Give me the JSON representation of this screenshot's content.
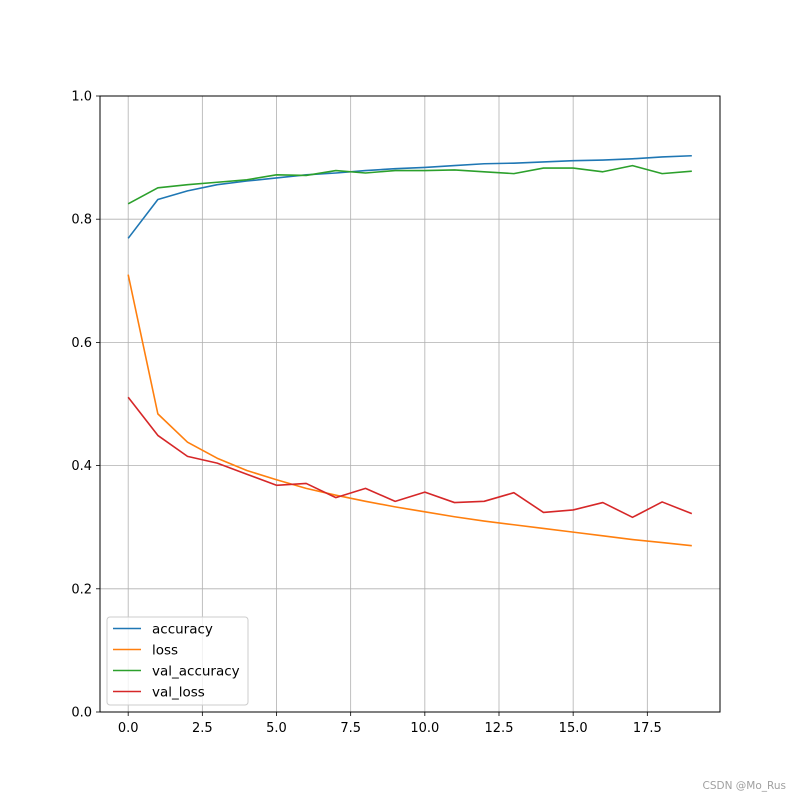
{
  "chart_data": {
    "type": "line",
    "title": "",
    "xlabel": "",
    "ylabel": "",
    "xlim": [
      -0.95,
      19.95
    ],
    "ylim": [
      0.0,
      1.0
    ],
    "x_ticks": [
      0.0,
      2.5,
      5.0,
      7.5,
      10.0,
      12.5,
      15.0,
      17.5
    ],
    "x_tick_labels": [
      "0.0",
      "2.5",
      "5.0",
      "7.5",
      "10.0",
      "12.5",
      "15.0",
      "17.5"
    ],
    "y_ticks": [
      0.0,
      0.2,
      0.4,
      0.6,
      0.8,
      1.0
    ],
    "y_tick_labels": [
      "0.0",
      "0.2",
      "0.4",
      "0.6",
      "0.8",
      "1.0"
    ],
    "grid": true,
    "legend_position": "lower-left",
    "x": [
      0,
      1,
      2,
      3,
      4,
      5,
      6,
      7,
      8,
      9,
      10,
      11,
      12,
      13,
      14,
      15,
      16,
      17,
      18,
      19
    ],
    "series": [
      {
        "name": "accuracy",
        "color": "#1f77b4",
        "values": [
          0.769,
          0.832,
          0.846,
          0.856,
          0.862,
          0.867,
          0.872,
          0.875,
          0.879,
          0.882,
          0.884,
          0.887,
          0.89,
          0.891,
          0.893,
          0.895,
          0.896,
          0.898,
          0.901,
          0.903
        ]
      },
      {
        "name": "loss",
        "color": "#ff7f0e",
        "values": [
          0.71,
          0.484,
          0.438,
          0.412,
          0.392,
          0.377,
          0.363,
          0.352,
          0.342,
          0.333,
          0.325,
          0.317,
          0.31,
          0.304,
          0.298,
          0.292,
          0.286,
          0.28,
          0.275,
          0.27
        ]
      },
      {
        "name": "val_accuracy",
        "color": "#2ca02c",
        "values": [
          0.825,
          0.851,
          0.856,
          0.86,
          0.864,
          0.872,
          0.871,
          0.879,
          0.875,
          0.879,
          0.879,
          0.88,
          0.877,
          0.874,
          0.883,
          0.883,
          0.877,
          0.887,
          0.874,
          0.878
        ]
      },
      {
        "name": "val_loss",
        "color": "#d62728",
        "values": [
          0.511,
          0.449,
          0.415,
          0.404,
          0.386,
          0.368,
          0.371,
          0.348,
          0.363,
          0.342,
          0.357,
          0.34,
          0.342,
          0.356,
          0.324,
          0.328,
          0.34,
          0.316,
          0.341,
          0.322
        ]
      }
    ]
  },
  "watermark": "CSDN @Mo_Rus"
}
